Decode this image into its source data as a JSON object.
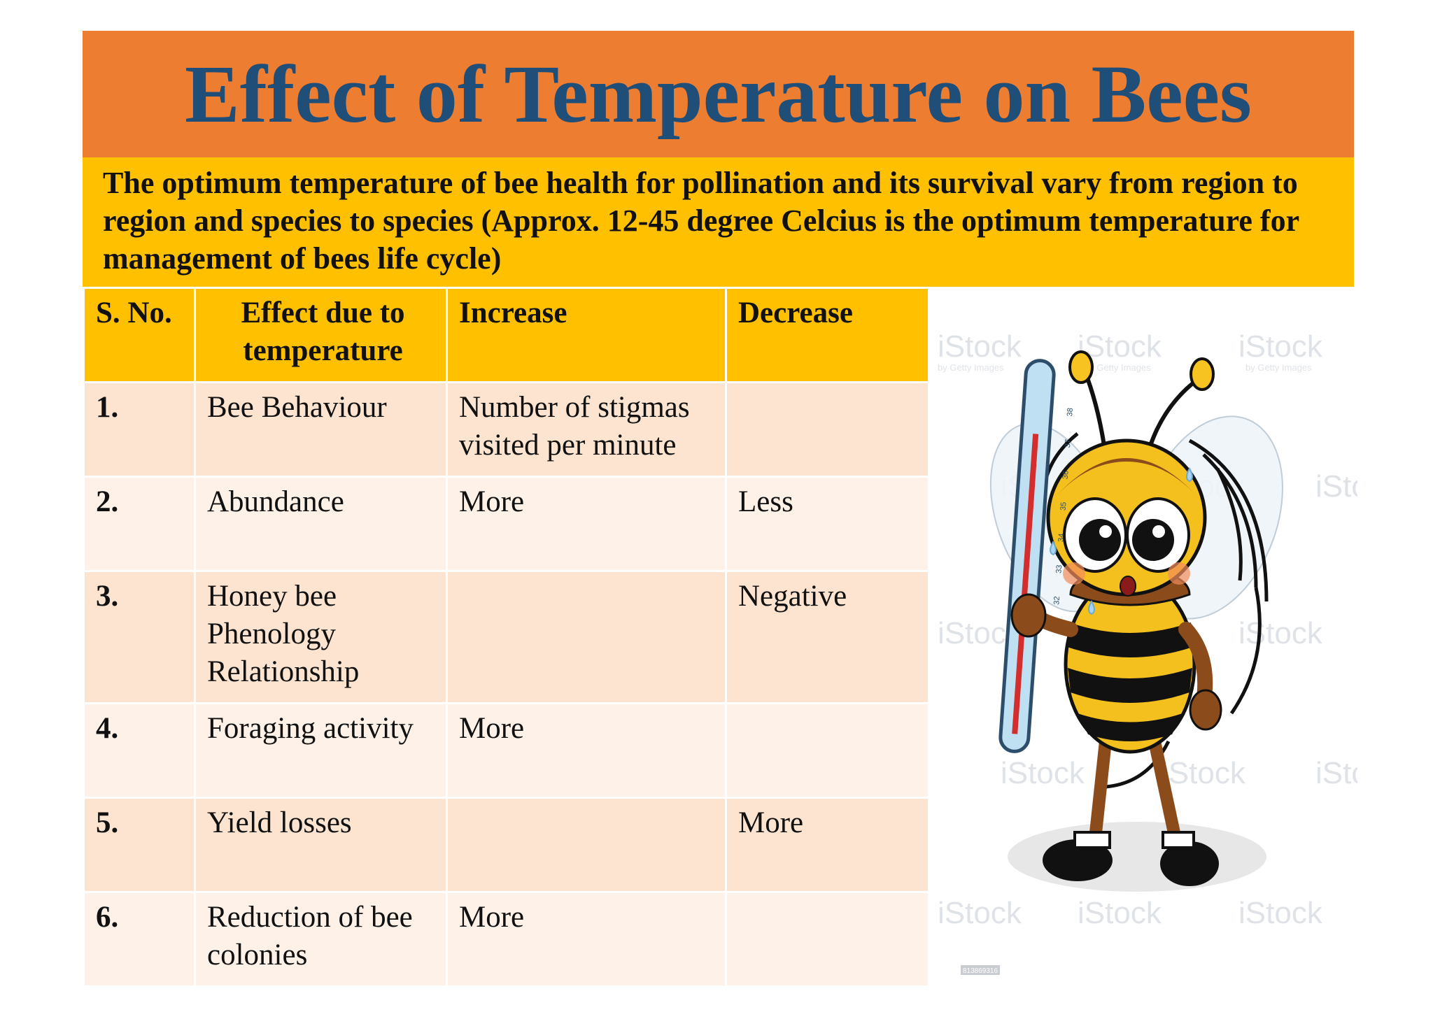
{
  "title": "Effect of Temperature on Bees",
  "intro": "The optimum temperature of bee health for pollination and its survival vary from region to region and species to species (Approx. 12-45 degree Celcius is the optimum temperature for management of bees life cycle)",
  "table": {
    "headers": {
      "sno": "S. No.",
      "effect": "Effect due to temperature",
      "increase": "Increase",
      "decrease": "Decrease"
    },
    "rows": [
      {
        "sno": "1.",
        "effect": "Bee Behaviour",
        "increase": "Number of stigmas visited per minute",
        "decrease": ""
      },
      {
        "sno": "2.",
        "effect": "Abundance",
        "increase": "More",
        "decrease": "Less"
      },
      {
        "sno": "3.",
        "effect": "Honey bee Phenology Relationship",
        "increase": "",
        "decrease": "Negative"
      },
      {
        "sno": "4.",
        "effect": "Foraging activity",
        "increase": "More",
        "decrease": ""
      },
      {
        "sno": "5.",
        "effect": "Yield losses",
        "increase": "",
        "decrease": "More"
      },
      {
        "sno": "6.",
        "effect": "Reduction of bee colonies",
        "increase": "More",
        "decrease": ""
      }
    ]
  },
  "illustration": {
    "subject": "cartoon bee holding thermometer",
    "thermometer_ticks": [
      "32",
      "33",
      "34",
      "35",
      "36",
      "37",
      "38"
    ],
    "watermark_text": "iStock",
    "watermark_subtext": "by Getty Images",
    "stock_id": "813869316",
    "colors": {
      "title_band": "#ed7d31",
      "title_text": "#1f4e79",
      "intro_band": "#ffc000",
      "row_odd": "#fce4d0",
      "row_even": "#fdf1e8"
    }
  }
}
